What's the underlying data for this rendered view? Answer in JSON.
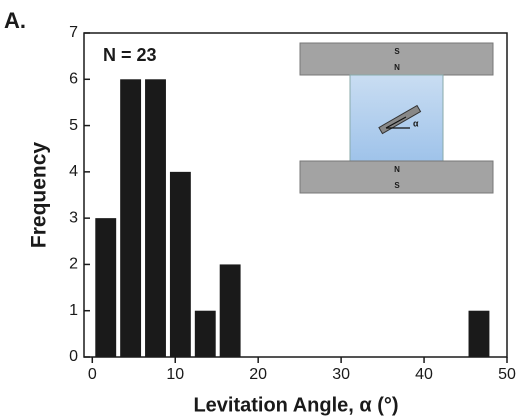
{
  "chart_data": {
    "type": "histogram",
    "panel_label": "A.",
    "annotation": "N = 23",
    "xlabel": "Levitation Angle, α (°)",
    "ylabel": "Frequency",
    "bins": [
      0,
      3,
      6,
      9,
      12,
      15,
      18,
      21,
      24,
      27,
      30,
      33,
      36,
      39,
      42,
      45,
      48
    ],
    "values": [
      3,
      6,
      6,
      4,
      1,
      2,
      0,
      0,
      0,
      0,
      0,
      0,
      0,
      0,
      0,
      1
    ],
    "color": "#1a1a1a",
    "xlim": [
      -1,
      50
    ],
    "xticks": [
      0,
      10,
      20,
      30,
      40,
      50
    ],
    "ylim": [
      0,
      7
    ],
    "yticks": [
      0,
      1,
      2,
      3,
      4,
      5,
      6,
      7
    ],
    "grid": false,
    "inset": {
      "top_magnet": [
        "S",
        "N"
      ],
      "bottom_magnet": [
        "N",
        "S"
      ],
      "angle_label": "α"
    }
  }
}
